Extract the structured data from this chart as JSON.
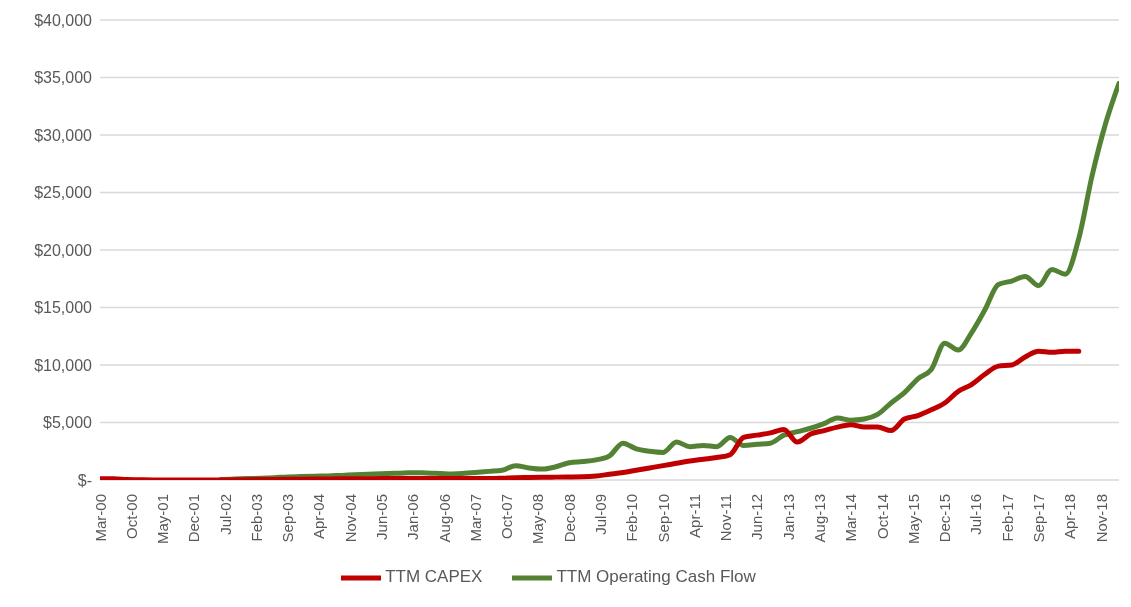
{
  "chart_data": {
    "type": "line",
    "x": [
      "2000-03",
      "2000-06",
      "2000-09",
      "2000-12",
      "2001-03",
      "2001-06",
      "2001-09",
      "2001-12",
      "2002-03",
      "2002-06",
      "2002-09",
      "2002-12",
      "2003-03",
      "2003-06",
      "2003-09",
      "2003-12",
      "2004-03",
      "2004-06",
      "2004-09",
      "2004-12",
      "2005-03",
      "2005-06",
      "2005-09",
      "2005-12",
      "2006-03",
      "2006-06",
      "2006-09",
      "2006-12",
      "2007-03",
      "2007-06",
      "2007-09",
      "2007-12",
      "2008-03",
      "2008-06",
      "2008-09",
      "2008-12",
      "2009-03",
      "2009-06",
      "2009-09",
      "2009-12",
      "2010-03",
      "2010-06",
      "2010-09",
      "2010-12",
      "2011-03",
      "2011-06",
      "2011-09",
      "2011-12",
      "2012-03",
      "2012-06",
      "2012-09",
      "2012-12",
      "2013-03",
      "2013-06",
      "2013-09",
      "2013-12",
      "2014-03",
      "2014-06",
      "2014-09",
      "2014-12",
      "2015-03",
      "2015-06",
      "2015-09",
      "2015-12",
      "2016-03",
      "2016-06",
      "2016-09",
      "2016-12",
      "2017-03",
      "2017-06",
      "2017-09",
      "2017-12",
      "2018-03",
      "2018-06",
      "2018-09",
      "2018-12",
      "2019-03"
    ],
    "series": [
      {
        "name": "TTM Operating Cash Flow",
        "color": "#548235",
        "values": [
          null,
          null,
          null,
          null,
          null,
          null,
          null,
          null,
          null,
          50,
          80,
          120,
          150,
          200,
          270,
          300,
          330,
          350,
          400,
          450,
          500,
          550,
          580,
          620,
          620,
          580,
          530,
          570,
          650,
          750,
          850,
          1250,
          1050,
          950,
          1150,
          1500,
          1600,
          1750,
          2100,
          3200,
          2700,
          2500,
          2400,
          3300,
          2900,
          3000,
          2900,
          3700,
          3000,
          3100,
          3200,
          3900,
          4200,
          4500,
          4900,
          5400,
          5200,
          5300,
          5700,
          6700,
          7600,
          8800,
          9600,
          11900,
          11300,
          12800,
          14800,
          17000,
          17300,
          17700,
          16900,
          18300,
          17900,
          21000,
          26500,
          31000,
          34500
        ]
      },
      {
        "name": "TTM CAPEX",
        "color": "#c00000",
        "values": [
          100,
          100,
          50,
          20,
          0,
          0,
          0,
          0,
          0,
          0,
          20,
          30,
          40,
          50,
          60,
          70,
          80,
          90,
          100,
          100,
          110,
          120,
          120,
          120,
          120,
          120,
          120,
          120,
          120,
          120,
          150,
          200,
          220,
          240,
          250,
          260,
          280,
          350,
          500,
          650,
          850,
          1050,
          1250,
          1450,
          1650,
          1800,
          1950,
          2200,
          3700,
          3900,
          4100,
          4400,
          3300,
          4000,
          4300,
          4600,
          4800,
          4600,
          4600,
          4300,
          5300,
          5600,
          6100,
          6700,
          7700,
          8300,
          9200,
          9900,
          10000,
          10700,
          11200,
          11100,
          11200,
          11200,
          null,
          null,
          null
        ]
      }
    ],
    "xlim": [
      "2000-03",
      "2019-03"
    ],
    "xticks": [
      {
        "value": "2000-03",
        "label": "Mar-00"
      },
      {
        "value": "2000-10",
        "label": "Oct-00"
      },
      {
        "value": "2001-05",
        "label": "May-01"
      },
      {
        "value": "2001-12",
        "label": "Dec-01"
      },
      {
        "value": "2002-07",
        "label": "Jul-02"
      },
      {
        "value": "2003-02",
        "label": "Feb-03"
      },
      {
        "value": "2003-09",
        "label": "Sep-03"
      },
      {
        "value": "2004-04",
        "label": "Apr-04"
      },
      {
        "value": "2004-11",
        "label": "Nov-04"
      },
      {
        "value": "2005-06",
        "label": "Jun-05"
      },
      {
        "value": "2006-01",
        "label": "Jan-06"
      },
      {
        "value": "2006-08",
        "label": "Aug-06"
      },
      {
        "value": "2007-03",
        "label": "Mar-07"
      },
      {
        "value": "2007-10",
        "label": "Oct-07"
      },
      {
        "value": "2008-05",
        "label": "May-08"
      },
      {
        "value": "2008-12",
        "label": "Dec-08"
      },
      {
        "value": "2009-07",
        "label": "Jul-09"
      },
      {
        "value": "2010-02",
        "label": "Feb-10"
      },
      {
        "value": "2010-09",
        "label": "Sep-10"
      },
      {
        "value": "2011-04",
        "label": "Apr-11"
      },
      {
        "value": "2011-11",
        "label": "Nov-11"
      },
      {
        "value": "2012-06",
        "label": "Jun-12"
      },
      {
        "value": "2013-01",
        "label": "Jan-13"
      },
      {
        "value": "2013-08",
        "label": "Aug-13"
      },
      {
        "value": "2014-03",
        "label": "Mar-14"
      },
      {
        "value": "2014-10",
        "label": "Oct-14"
      },
      {
        "value": "2015-05",
        "label": "May-15"
      },
      {
        "value": "2015-12",
        "label": "Dec-15"
      },
      {
        "value": "2016-07",
        "label": "Jul-16"
      },
      {
        "value": "2017-02",
        "label": "Feb-17"
      },
      {
        "value": "2017-09",
        "label": "Sep-17"
      },
      {
        "value": "2018-04",
        "label": "Apr-18"
      },
      {
        "value": "2018-11",
        "label": "Nov-18"
      }
    ],
    "ylim": [
      0,
      40000
    ],
    "yticks": [
      {
        "value": 0,
        "label": "$-"
      },
      {
        "value": 5000,
        "label": "$5,000"
      },
      {
        "value": 10000,
        "label": "$10,000"
      },
      {
        "value": 15000,
        "label": "$15,000"
      },
      {
        "value": 20000,
        "label": "$20,000"
      },
      {
        "value": 25000,
        "label": "$25,000"
      },
      {
        "value": 30000,
        "label": "$30,000"
      },
      {
        "value": 35000,
        "label": "$35,000"
      },
      {
        "value": 40000,
        "label": "$40,000"
      }
    ],
    "grid": "y",
    "legend": "bottom",
    "marker": "none",
    "line_style": "solid"
  }
}
